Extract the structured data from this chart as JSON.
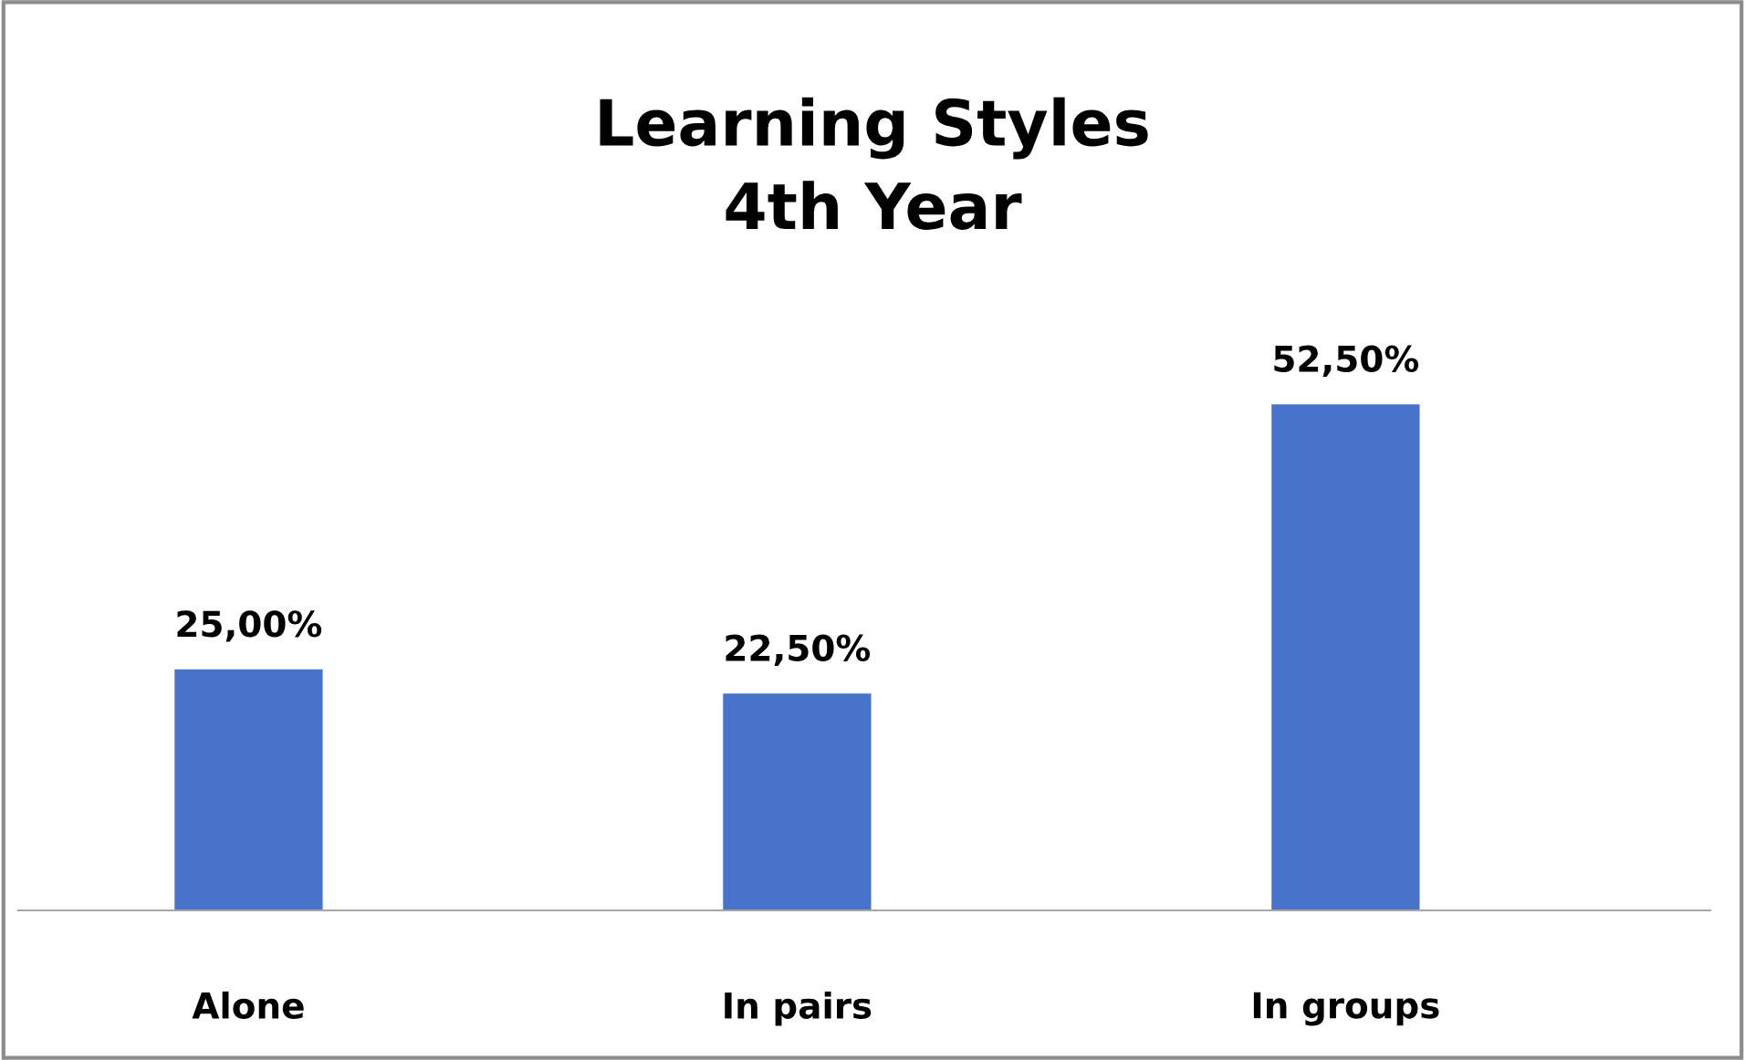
{
  "chart_data": {
    "type": "bar",
    "title": "Learning Styles\n4th Year",
    "categories": [
      "Alone",
      "In pairs",
      "In groups"
    ],
    "values": [
      25,
      22.5,
      52.5
    ],
    "value_labels": [
      "25,00%",
      "22,50%",
      "52,50%"
    ],
    "color": "#4773cb",
    "tick_labels": "x",
    "grid": false,
    "legend": false
  }
}
